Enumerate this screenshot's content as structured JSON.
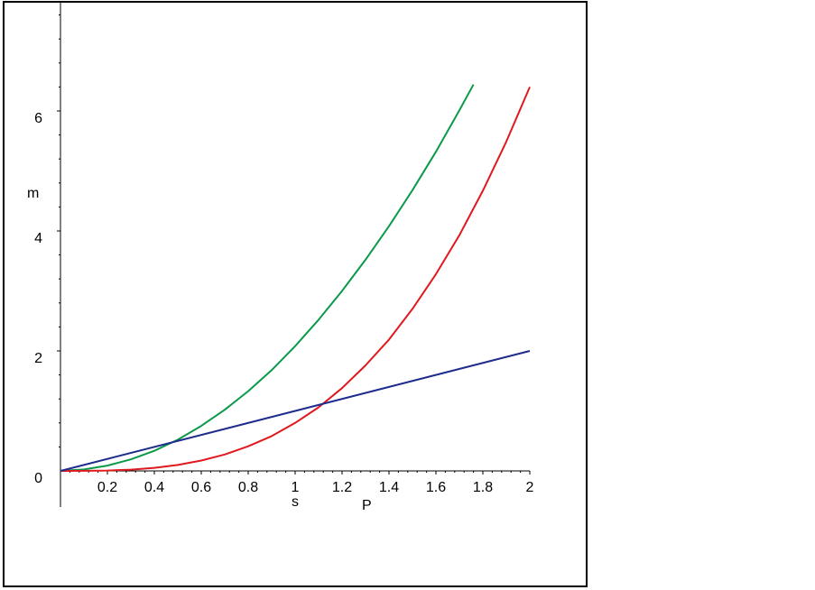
{
  "chart_data": {
    "type": "line",
    "xlabel": "s",
    "ylabel": "m",
    "extra_label": "P",
    "xlim": [
      0,
      2
    ],
    "ylim": [
      -0.6,
      7.7
    ],
    "x_ticks": [
      {
        "value": 0.2,
        "label": "0.2"
      },
      {
        "value": 0.4,
        "label": "0.4"
      },
      {
        "value": 0.6,
        "label": "0.6"
      },
      {
        "value": 0.8,
        "label": "0.8"
      },
      {
        "value": 1.0,
        "label": "1"
      },
      {
        "value": 1.2,
        "label": "1.2"
      },
      {
        "value": 1.4,
        "label": "1.4"
      },
      {
        "value": 1.6,
        "label": "1.6"
      },
      {
        "value": 1.8,
        "label": "1.8"
      },
      {
        "value": 2.0,
        "label": "2"
      }
    ],
    "y_ticks": [
      {
        "value": 0,
        "label": "0"
      },
      {
        "value": 2,
        "label": "2"
      },
      {
        "value": 4,
        "label": "4"
      },
      {
        "value": 6,
        "label": "6"
      }
    ],
    "grid": false,
    "series": [
      {
        "color": "#0a9a4a",
        "x": [
          0,
          0.1,
          0.2,
          0.3,
          0.4,
          0.5,
          0.6,
          0.7,
          0.8,
          0.9,
          1.0,
          1.1,
          1.2,
          1.3,
          1.4,
          1.5,
          1.6,
          1.7,
          1.76
        ],
        "y": [
          0,
          0.024,
          0.089,
          0.193,
          0.336,
          0.52,
          0.75,
          1.02,
          1.33,
          1.68,
          2.08,
          2.52,
          3.0,
          3.52,
          4.08,
          4.68,
          5.32,
          6.01,
          6.44
        ]
      },
      {
        "color": "#e0191e",
        "x": [
          0,
          0.1,
          0.2,
          0.3,
          0.4,
          0.5,
          0.6,
          0.7,
          0.8,
          0.9,
          1.0,
          1.1,
          1.2,
          1.3,
          1.4,
          1.5,
          1.6,
          1.7,
          1.8,
          1.9,
          2.0
        ],
        "y": [
          0,
          0.0008,
          0.0064,
          0.0216,
          0.0512,
          0.1,
          0.173,
          0.274,
          0.41,
          0.58,
          0.8,
          1.06,
          1.38,
          1.76,
          2.19,
          2.7,
          3.28,
          3.93,
          4.67,
          5.49,
          6.4
        ]
      },
      {
        "color": "#1e2c8c",
        "x": [
          0,
          2
        ],
        "y": [
          0,
          2
        ]
      }
    ]
  }
}
